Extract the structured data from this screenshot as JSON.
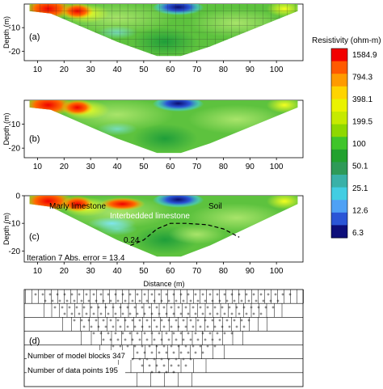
{
  "chart_data": [
    {
      "type": "heatmap",
      "panel_label": "(a)",
      "ylabel": "Depth (m)",
      "xlim": [
        5,
        110
      ],
      "ylim": [
        -24,
        0
      ],
      "x_ticks": [
        "10",
        "20",
        "30",
        "40",
        "50",
        "60",
        "70",
        "80",
        "90",
        "100"
      ],
      "y_ticks": [
        "-10",
        "-20"
      ],
      "mesh_overlay": true
    },
    {
      "type": "heatmap",
      "panel_label": "(b)",
      "ylabel": "Depth (m)",
      "xlim": [
        5,
        110
      ],
      "ylim": [
        -24,
        0
      ],
      "x_ticks": [
        "10",
        "20",
        "30",
        "40",
        "50",
        "60",
        "70",
        "80",
        "90",
        "100"
      ],
      "y_ticks": [
        "-10",
        "-20"
      ]
    },
    {
      "type": "heatmap",
      "panel_label": "(c)",
      "ylabel": "Depth (m)",
      "xlabel": "Distance (m)",
      "xlim": [
        5,
        110
      ],
      "ylim": [
        -24,
        0
      ],
      "x_ticks": [
        "10",
        "20",
        "30",
        "40",
        "50",
        "60",
        "70",
        "80",
        "90",
        "100"
      ],
      "y_ticks": [
        "0",
        "-10",
        "-20"
      ],
      "annotations": {
        "marly": "Marly limestone",
        "interbedded": "Interbedded limestone",
        "soil": "Soil",
        "contour": "0.24",
        "iteration": "Iteration 7 Abs. error = 13.4"
      },
      "contour_line": {
        "x": [
          45,
          50,
          55,
          60,
          66,
          74,
          80,
          86
        ],
        "y": [
          -18,
          -16,
          -12,
          -10,
          -10,
          -10.5,
          -12,
          -15
        ]
      }
    },
    {
      "type": "table",
      "panel_label": "(d)",
      "notes": [
        "Number of model blocks 347",
        "Number of data points 195"
      ],
      "layers": 7
    }
  ],
  "colorbar": {
    "title": "Resistivity (ohm-m)",
    "labels": [
      "1584.9",
      "794.3",
      "398.1",
      "199.5",
      "100",
      "50.1",
      "25.1",
      "12.6",
      "6.3"
    ],
    "colors": [
      "#f20000",
      "#ff5a00",
      "#ff9a00",
      "#ffd400",
      "#eaf200",
      "#c6ea00",
      "#8ed800",
      "#3fc52a",
      "#22a12f",
      "#2e9a58",
      "#39b1a8",
      "#42cde2",
      "#4fa1f5",
      "#2b55d6",
      "#0d0e7a"
    ]
  }
}
